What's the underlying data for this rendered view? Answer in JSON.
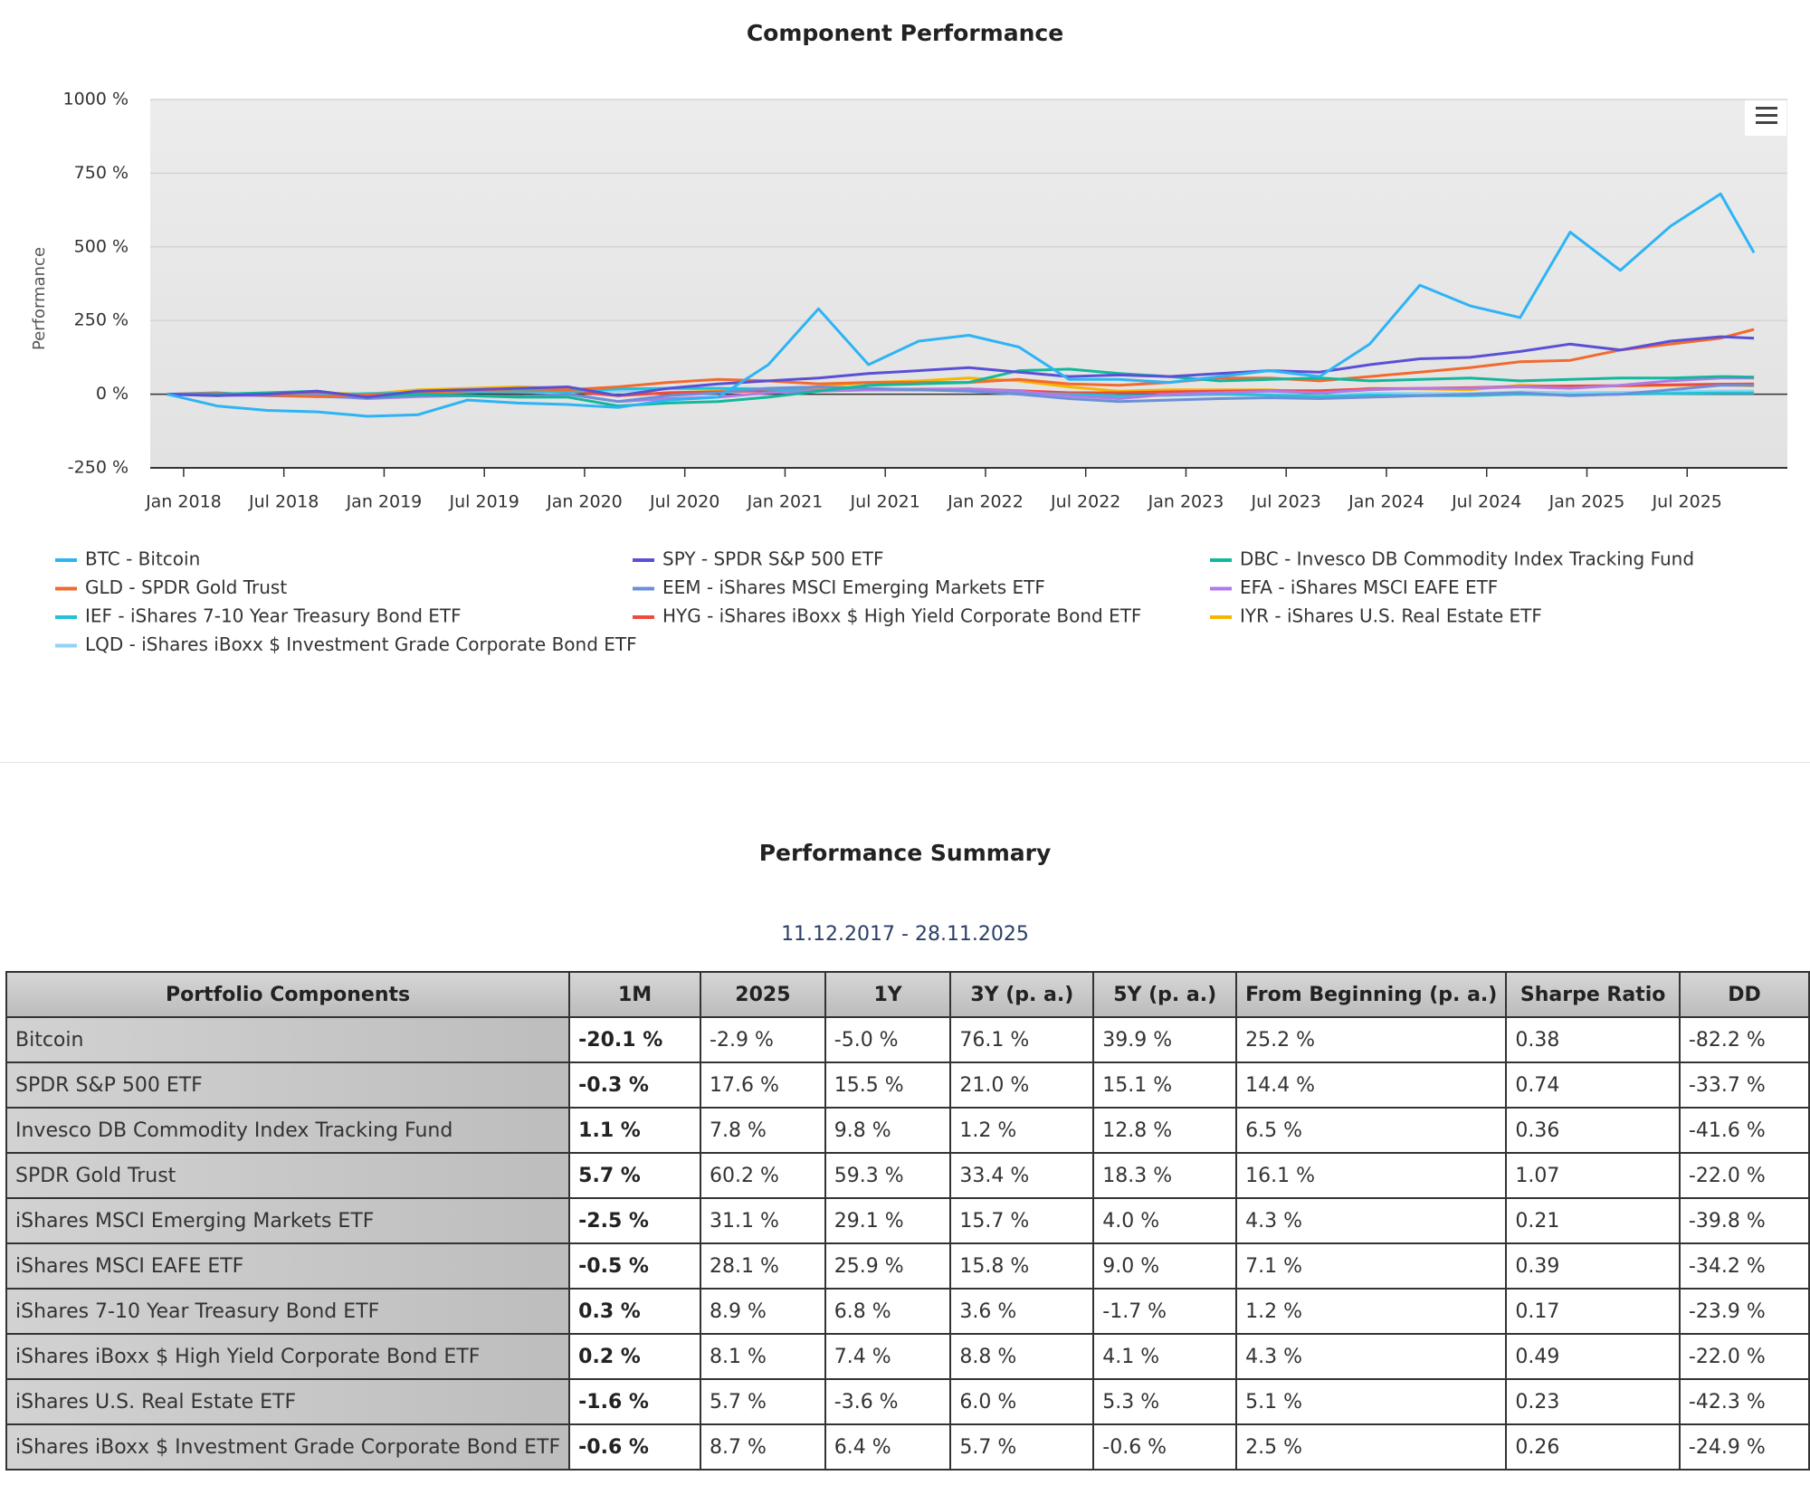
{
  "chart_data": {
    "type": "line",
    "title": "Component Performance",
    "y_label": "Performance",
    "x": [
      "2017-12",
      "2018-03",
      "2018-06",
      "2018-09",
      "2018-12",
      "2019-03",
      "2019-06",
      "2019-09",
      "2019-12",
      "2020-03",
      "2020-06",
      "2020-09",
      "2020-12",
      "2021-03",
      "2021-06",
      "2021-09",
      "2021-12",
      "2022-03",
      "2022-06",
      "2022-09",
      "2022-12",
      "2023-03",
      "2023-06",
      "2023-09",
      "2023-12",
      "2024-03",
      "2024-06",
      "2024-09",
      "2024-12",
      "2025-03",
      "2025-06",
      "2025-09",
      "2025-11"
    ],
    "xlim": [
      "2017-11",
      "2026-01"
    ],
    "xticks": [
      {
        "value": "2018-01",
        "label": "Jan 2018"
      },
      {
        "value": "2018-07",
        "label": "Jul 2018"
      },
      {
        "value": "2019-01",
        "label": "Jan 2019"
      },
      {
        "value": "2019-07",
        "label": "Jul 2019"
      },
      {
        "value": "2020-01",
        "label": "Jan 2020"
      },
      {
        "value": "2020-07",
        "label": "Jul 2020"
      },
      {
        "value": "2021-01",
        "label": "Jan 2021"
      },
      {
        "value": "2021-07",
        "label": "Jul 2021"
      },
      {
        "value": "2022-01",
        "label": "Jan 2022"
      },
      {
        "value": "2022-07",
        "label": "Jul 2022"
      },
      {
        "value": "2023-01",
        "label": "Jan 2023"
      },
      {
        "value": "2023-07",
        "label": "Jul 2023"
      },
      {
        "value": "2024-01",
        "label": "Jan 2024"
      },
      {
        "value": "2024-07",
        "label": "Jul 2024"
      },
      {
        "value": "2025-01",
        "label": "Jan 2025"
      },
      {
        "value": "2025-07",
        "label": "Jul 2025"
      }
    ],
    "ylim": [
      -250,
      1000
    ],
    "yticks": [
      {
        "value": -250,
        "label": "-250 %"
      },
      {
        "value": 0,
        "label": "0 %"
      },
      {
        "value": 250,
        "label": "250 %"
      },
      {
        "value": 500,
        "label": "500 %"
      },
      {
        "value": 750,
        "label": "750 %"
      },
      {
        "value": 1000,
        "label": "1000 %"
      }
    ],
    "grid": true,
    "series": [
      {
        "name": "BTC - Bitcoin",
        "color": "#2db4f5",
        "values": [
          0,
          -40,
          -55,
          -60,
          -75,
          -70,
          -20,
          -30,
          -35,
          -45,
          -20,
          -10,
          100,
          290,
          100,
          180,
          200,
          160,
          50,
          50,
          40,
          60,
          80,
          60,
          170,
          370,
          300,
          260,
          550,
          420,
          570,
          680,
          480
        ]
      },
      {
        "name": "SPY - SPDR S&P 500 ETF",
        "color": "#5b4fd6",
        "values": [
          0,
          -5,
          0,
          10,
          -10,
          10,
          15,
          20,
          25,
          -5,
          20,
          35,
          45,
          55,
          70,
          80,
          90,
          75,
          60,
          65,
          60,
          70,
          80,
          75,
          100,
          120,
          125,
          145,
          170,
          150,
          180,
          195,
          190
        ]
      },
      {
        "name": "DBC - Invesco DB Commodity Index Tracking Fund",
        "color": "#12b89b",
        "values": [
          0,
          0,
          5,
          10,
          -10,
          0,
          -5,
          -10,
          -10,
          -40,
          -30,
          -25,
          -10,
          10,
          30,
          35,
          40,
          80,
          85,
          70,
          60,
          45,
          50,
          55,
          45,
          50,
          55,
          45,
          50,
          55,
          55,
          60,
          58
        ]
      },
      {
        "name": "GLD - SPDR Gold Trust",
        "color": "#f26a2e",
        "values": [
          0,
          2,
          -3,
          -8,
          -2,
          3,
          12,
          18,
          15,
          25,
          40,
          50,
          45,
          35,
          40,
          40,
          40,
          50,
          35,
          30,
          40,
          55,
          55,
          45,
          60,
          75,
          90,
          110,
          115,
          150,
          170,
          190,
          220
        ]
      },
      {
        "name": "EEM - iShares MSCI Emerging Markets ETF",
        "color": "#6b8fd8",
        "values": [
          0,
          5,
          -5,
          -8,
          -12,
          -5,
          -5,
          -8,
          0,
          -25,
          -5,
          5,
          20,
          25,
          20,
          15,
          10,
          0,
          -15,
          -25,
          -20,
          -15,
          -12,
          -15,
          -10,
          -5,
          0,
          5,
          -5,
          0,
          15,
          30,
          30
        ]
      },
      {
        "name": "EFA - iShares MSCI EAFE ETF",
        "color": "#b07ae8",
        "values": [
          0,
          -3,
          -5,
          -5,
          -15,
          -8,
          -5,
          -8,
          0,
          -25,
          -15,
          -10,
          5,
          10,
          15,
          15,
          18,
          10,
          -5,
          -15,
          0,
          5,
          10,
          5,
          15,
          20,
          20,
          25,
          20,
          30,
          45,
          55,
          55
        ]
      },
      {
        "name": "IEF - iShares 7-10 Year Treasury Bond ETF",
        "color": "#1fc3d6",
        "values": [
          0,
          -2,
          -2,
          -3,
          2,
          4,
          8,
          10,
          8,
          18,
          20,
          20,
          17,
          12,
          14,
          14,
          13,
          5,
          0,
          -5,
          -3,
          0,
          -3,
          -8,
          -3,
          -5,
          -5,
          0,
          -3,
          0,
          2,
          4,
          4
        ]
      },
      {
        "name": "HYG - iShares iBoxx $ High Yield Corporate Bond ETF",
        "color": "#f04a3e",
        "values": [
          0,
          -2,
          -2,
          0,
          -5,
          4,
          6,
          8,
          10,
          -5,
          5,
          8,
          12,
          14,
          16,
          17,
          18,
          12,
          5,
          5,
          8,
          10,
          12,
          12,
          18,
          20,
          22,
          26,
          28,
          29,
          32,
          34,
          35
        ]
      },
      {
        "name": "IYR - iShares U.S. Real Estate ETF",
        "color": "#f7b500",
        "values": [
          0,
          -5,
          5,
          5,
          0,
          15,
          20,
          25,
          20,
          -5,
          5,
          10,
          15,
          25,
          40,
          45,
          55,
          45,
          25,
          10,
          15,
          15,
          15,
          5,
          20,
          18,
          15,
          30,
          25,
          28,
          30,
          32,
          28
        ]
      },
      {
        "name": "LQD - iShares iBoxx $ Investment Grade Corporate Bond ETF",
        "color": "#8fd3f7",
        "values": [
          0,
          -3,
          -4,
          -3,
          -3,
          3,
          8,
          12,
          12,
          10,
          18,
          20,
          20,
          14,
          16,
          16,
          15,
          5,
          -5,
          -8,
          -3,
          0,
          -1,
          -5,
          3,
          2,
          2,
          8,
          5,
          6,
          9,
          11,
          11
        ]
      }
    ]
  },
  "summary": {
    "title": "Performance Summary",
    "period": "11.12.2017 - 28.11.2025",
    "table": {
      "headers": [
        "Portfolio Components",
        "1M",
        "2025",
        "1Y",
        "3Y (p. a.)",
        "5Y (p. a.)",
        "From Beginning (p. a.)",
        "Sharpe Ratio",
        "DD"
      ],
      "rows": [
        [
          "Bitcoin",
          "-20.1 %",
          "-2.9 %",
          "-5.0 %",
          "76.1 %",
          "39.9 %",
          "25.2 %",
          "0.38",
          "-82.2 %"
        ],
        [
          "SPDR S&P 500 ETF",
          "-0.3 %",
          "17.6 %",
          "15.5 %",
          "21.0 %",
          "15.1 %",
          "14.4 %",
          "0.74",
          "-33.7 %"
        ],
        [
          "Invesco DB Commodity Index Tracking Fund",
          "1.1 %",
          "7.8 %",
          "9.8 %",
          "1.2 %",
          "12.8 %",
          "6.5 %",
          "0.36",
          "-41.6 %"
        ],
        [
          "SPDR Gold Trust",
          "5.7 %",
          "60.2 %",
          "59.3 %",
          "33.4 %",
          "18.3 %",
          "16.1 %",
          "1.07",
          "-22.0 %"
        ],
        [
          "iShares MSCI Emerging Markets ETF",
          "-2.5 %",
          "31.1 %",
          "29.1 %",
          "15.7 %",
          "4.0 %",
          "4.3 %",
          "0.21",
          "-39.8 %"
        ],
        [
          "iShares MSCI EAFE ETF",
          "-0.5 %",
          "28.1 %",
          "25.9 %",
          "15.8 %",
          "9.0 %",
          "7.1 %",
          "0.39",
          "-34.2 %"
        ],
        [
          "iShares 7-10 Year Treasury Bond ETF",
          "0.3 %",
          "8.9 %",
          "6.8 %",
          "3.6 %",
          "-1.7 %",
          "1.2 %",
          "0.17",
          "-23.9 %"
        ],
        [
          "iShares iBoxx $ High Yield Corporate Bond ETF",
          "0.2 %",
          "8.1 %",
          "7.4 %",
          "8.8 %",
          "4.1 %",
          "4.3 %",
          "0.49",
          "-22.0 %"
        ],
        [
          "iShares U.S. Real Estate ETF",
          "-1.6 %",
          "5.7 %",
          "-3.6 %",
          "6.0 %",
          "5.3 %",
          "5.1 %",
          "0.23",
          "-42.3 %"
        ],
        [
          "iShares iBoxx $ Investment Grade Corporate Bond ETF",
          "-0.6 %",
          "8.7 %",
          "6.4 %",
          "5.7 %",
          "-0.6 %",
          "2.5 %",
          "0.26",
          "-24.9 %"
        ]
      ]
    }
  }
}
